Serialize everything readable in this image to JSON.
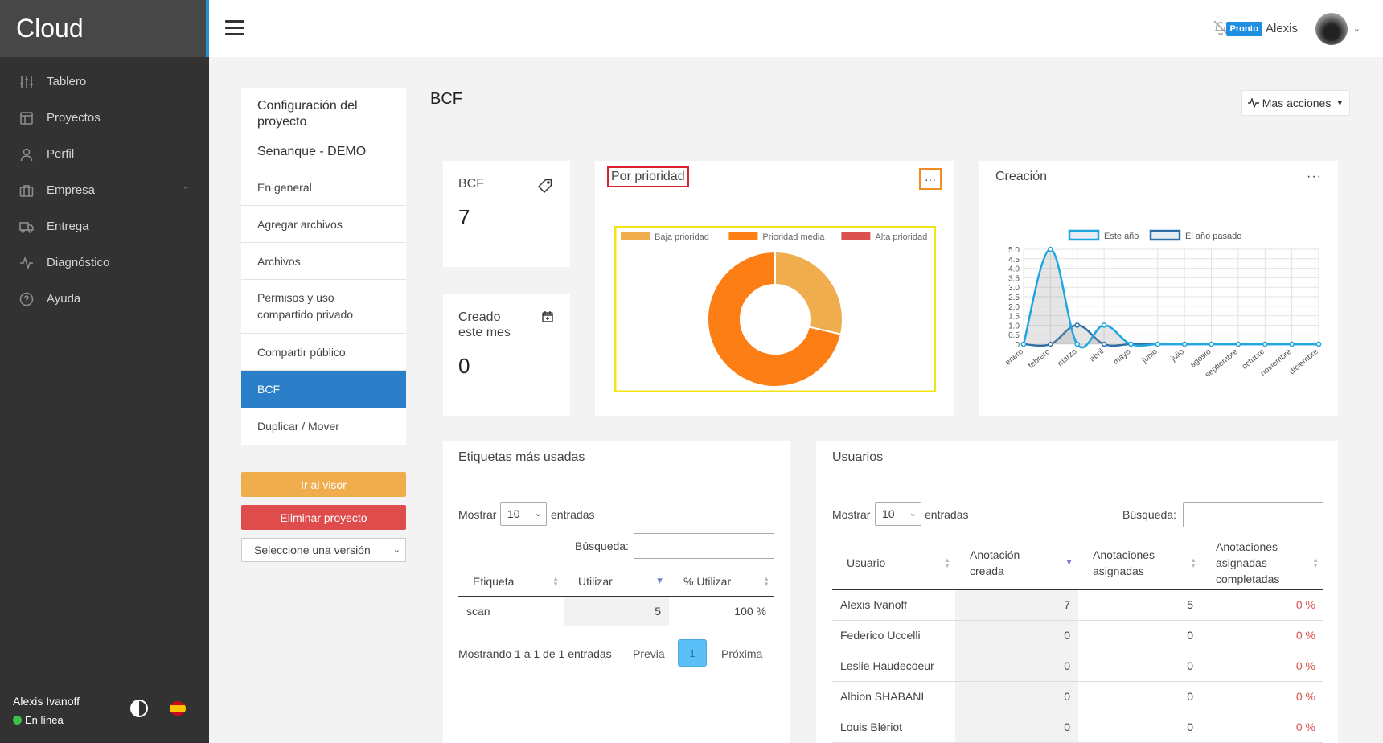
{
  "brand": "Cloud",
  "sidebar": {
    "items": [
      {
        "label": "Tablero",
        "icon": "sliders-icon"
      },
      {
        "label": "Proyectos",
        "icon": "layout-icon"
      },
      {
        "label": "Perfil",
        "icon": "user-icon"
      },
      {
        "label": "Empresa",
        "icon": "briefcase-icon"
      },
      {
        "label": "Entrega",
        "icon": "truck-icon"
      },
      {
        "label": "Diagnóstico",
        "icon": "activity-icon"
      },
      {
        "label": "Ayuda",
        "icon": "help-circle-icon"
      }
    ],
    "user_name": "Alexis Ivanoff",
    "status": "En línea"
  },
  "topbar": {
    "badge": "Pronto",
    "user_name": "Alexis"
  },
  "project_menu": {
    "title": "Configuración del proyecto",
    "project_name": "Senanque - DEMO",
    "items": [
      "En general",
      "Agregar archivos",
      "Archivos",
      "Permisos y uso compartido privado",
      "Compartir público",
      "BCF",
      "Duplicar / Mover"
    ],
    "active_item": "BCF",
    "visor_button": "Ir al visor",
    "delete_button": "Eliminar proyecto",
    "version_placeholder": "Seleccione una versión"
  },
  "page": {
    "title": "BCF",
    "more_actions": "Mas acciones"
  },
  "stats": {
    "bcf_label": "BCF",
    "bcf_value": "7",
    "created_label": "Creado este mes",
    "created_value": "0"
  },
  "colors": {
    "accent": "#2a7fc8",
    "low": "#f0ad4e",
    "medium": "#fd7e14",
    "high": "#dc4f4f",
    "this_year": "#1ea6e0",
    "last_year": "#2f6fa8"
  },
  "chart_data": [
    {
      "type": "pie",
      "title": "Por prioridad",
      "categories": [
        "Baja prioridad",
        "Prioridad media",
        "Alta prioridad"
      ],
      "values": [
        2,
        5,
        0
      ],
      "donut": true,
      "legend": "top"
    },
    {
      "type": "area",
      "title": "Creación",
      "categories": [
        "enero",
        "febrero",
        "marzo",
        "abril",
        "mayo",
        "junio",
        "julio",
        "agosto",
        "septiembre",
        "octubre",
        "noviembre",
        "diciembre"
      ],
      "series": [
        {
          "name": "Este año",
          "values": [
            0,
            5,
            0,
            1,
            0,
            0,
            0,
            0,
            0,
            0,
            0,
            0
          ]
        },
        {
          "name": "El año pasado",
          "values": [
            0,
            0,
            1,
            0,
            0,
            0,
            0,
            0,
            0,
            0,
            0,
            0
          ]
        }
      ],
      "ylim": [
        0,
        5
      ],
      "yticks": [
        "5.0",
        "4.5",
        "4.0",
        "3.5",
        "3.0",
        "2.5",
        "2.0",
        "1.5",
        "1.0",
        "0.5",
        "0"
      ],
      "grid": true,
      "legend": "top"
    }
  ],
  "tags_table": {
    "title": "Etiquetas más usadas",
    "show": "Mostrar",
    "entries_value": "10",
    "entries": "entradas",
    "search": "Búsqueda:",
    "columns": [
      "Etiqueta",
      "Utilizar",
      "% Utilizar"
    ],
    "rows": [
      [
        "scan",
        "5",
        "100 %"
      ]
    ],
    "info": "Mostrando 1 a 1 de 1 entradas",
    "prev": "Previa",
    "page": "1",
    "next": "Próxima"
  },
  "users_table": {
    "title": "Usuarios",
    "show": "Mostrar",
    "entries_value": "10",
    "entries": "entradas",
    "search": "Búsqueda:",
    "columns": [
      "Usuario",
      "Anotación creada",
      "Anotaciones asignadas",
      "Anotaciones asignadas completadas"
    ],
    "rows": [
      [
        "Alexis Ivanoff",
        "7",
        "5",
        "0 %"
      ],
      [
        "Federico Uccelli",
        "0",
        "0",
        "0 %"
      ],
      [
        "Leslie Haudecoeur",
        "0",
        "0",
        "0 %"
      ],
      [
        "Albion SHABANI",
        "0",
        "0",
        "0 %"
      ],
      [
        "Louis Blériot",
        "0",
        "0",
        "0 %"
      ]
    ]
  }
}
